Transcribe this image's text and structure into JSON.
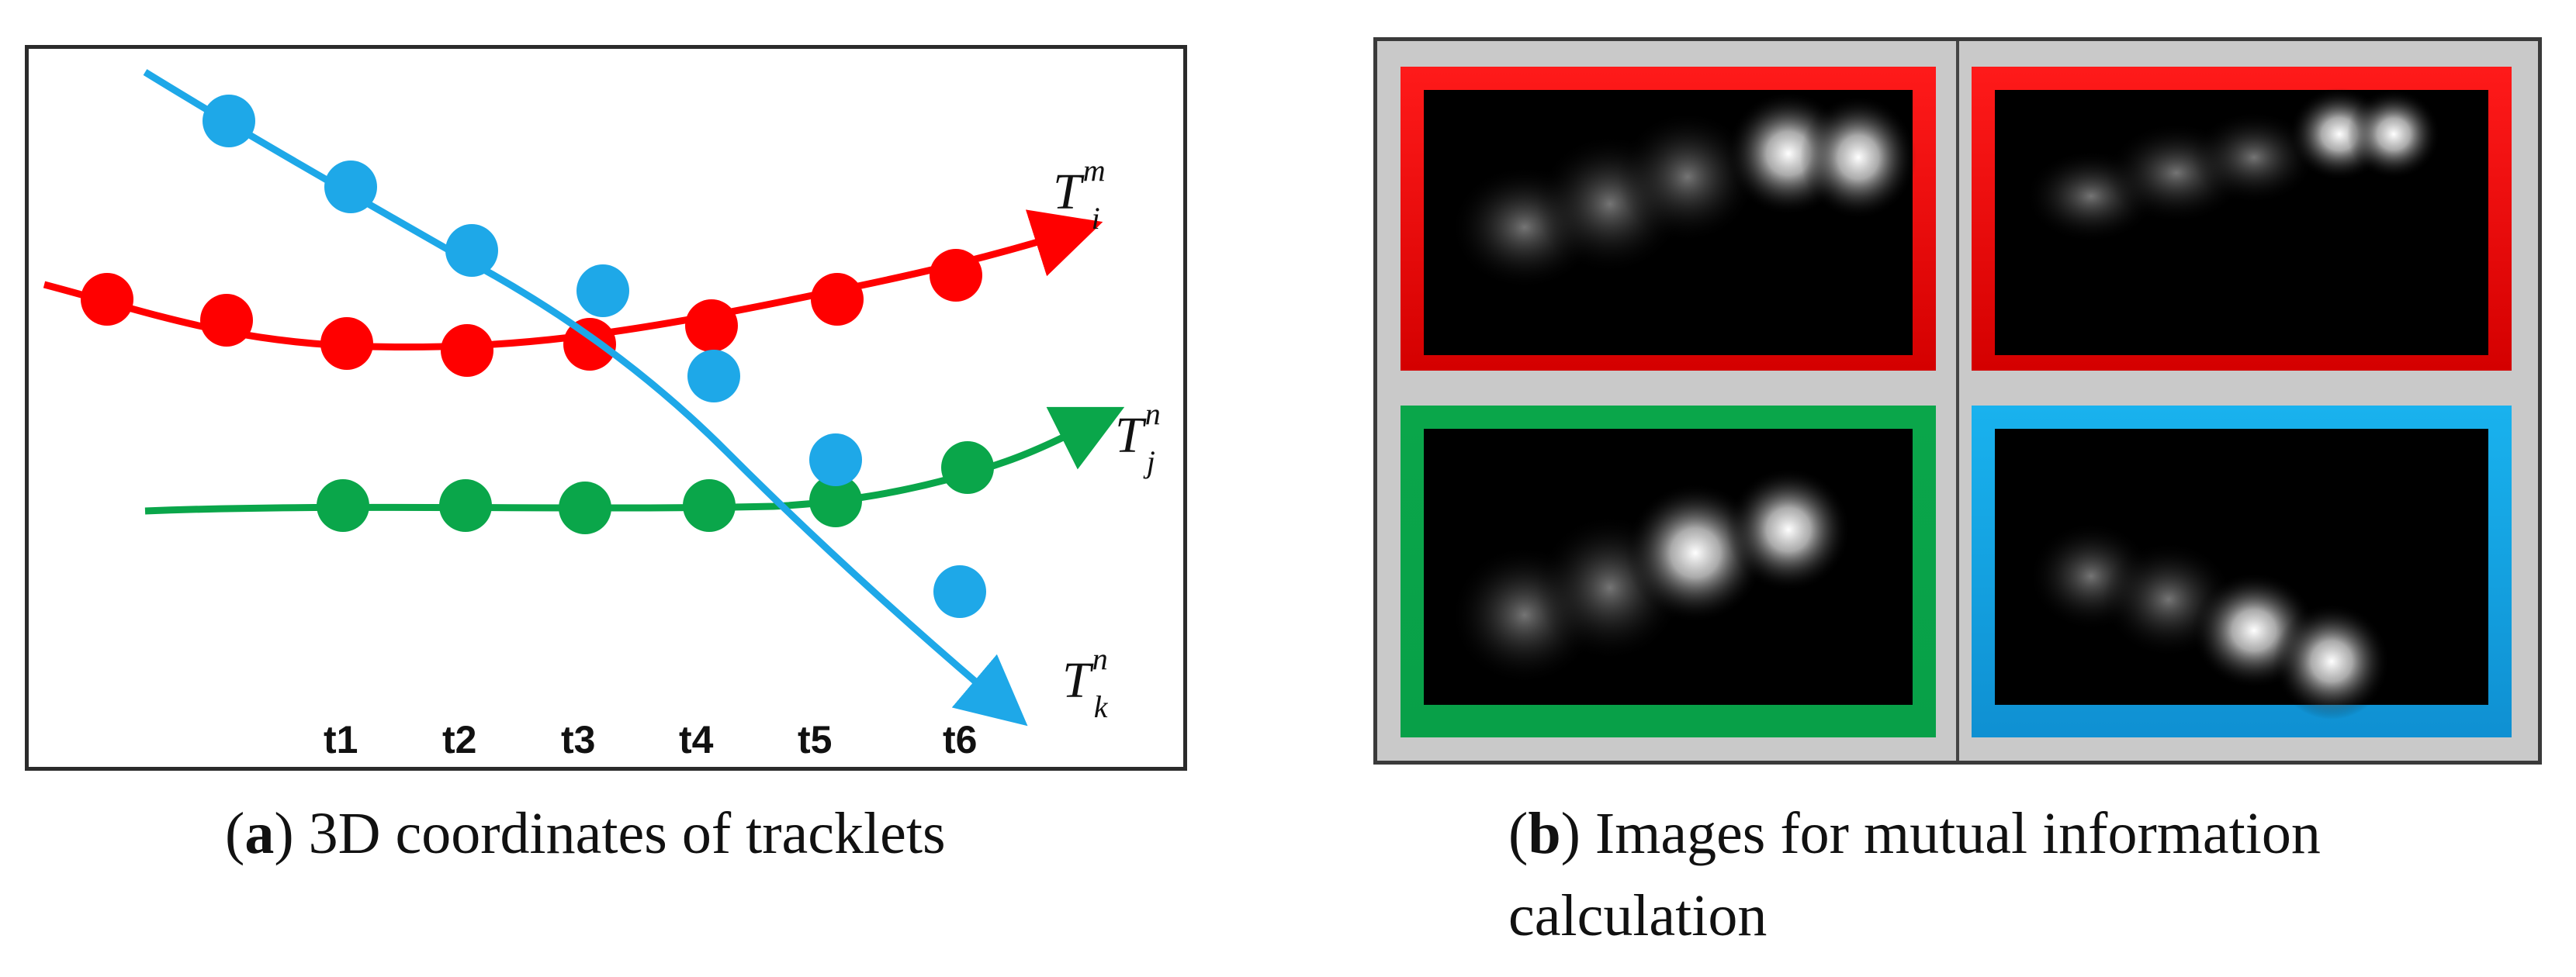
{
  "panel_a": {
    "time_labels": [
      "t1",
      "t2",
      "t3",
      "t4",
      "t5",
      "t6"
    ],
    "tracks": [
      {
        "id": "red",
        "color": "#ff0000",
        "label_main": "T",
        "label_sub": "i",
        "label_sup": "m"
      },
      {
        "id": "green",
        "color": "#0aa64a",
        "label_main": "T",
        "label_sub": "j",
        "label_sup": "n"
      },
      {
        "id": "blue",
        "color": "#1ea8e8",
        "label_main": "T",
        "label_sub": "k",
        "label_sup": "n"
      }
    ],
    "caption_letter": "a",
    "caption_text": " 3D coordinates of tracklets"
  },
  "panel_b": {
    "frames": [
      {
        "position": "top-left",
        "border_color": "#ff0000"
      },
      {
        "position": "top-right",
        "border_color": "#ff0000"
      },
      {
        "position": "bottom-left",
        "border_color": "#0aa64a"
      },
      {
        "position": "bottom-right",
        "border_color": "#1ea8e8"
      }
    ],
    "caption_letter": "b",
    "caption_line1": " Images for mutual information",
    "caption_line2": "calculation"
  }
}
